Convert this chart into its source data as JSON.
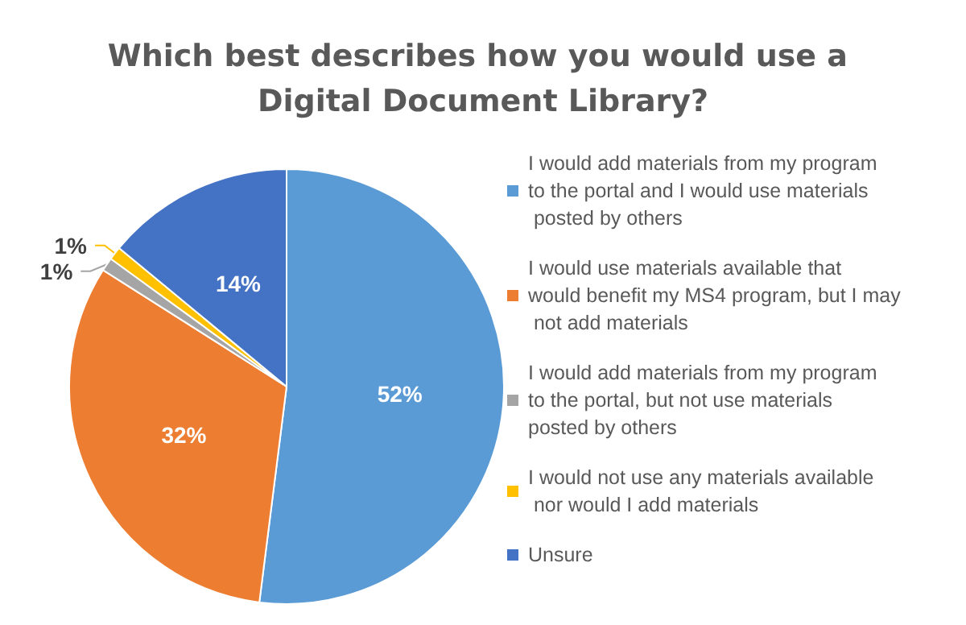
{
  "chart_data": {
    "type": "pie",
    "title": "Which best describes how you would use a Digital Document Library?",
    "categories": [
      "I would add materials from my program to the portal and I would use materials posted by others",
      "I would use materials available that would benefit my MS4 program, but I may not add materials",
      "I would add materials from my program to the portal, but not use materials posted by others",
      "I would not use any materials available nor would I add materials",
      "Unsure"
    ],
    "values": [
      52,
      32,
      1,
      1,
      14
    ],
    "value_labels": [
      "52%",
      "32%",
      "1%",
      "1%",
      "14%"
    ],
    "colors": [
      "#5b9bd5",
      "#ed7d31",
      "#a5a5a5",
      "#ffc000",
      "#4472c4"
    ],
    "legend": "right"
  }
}
